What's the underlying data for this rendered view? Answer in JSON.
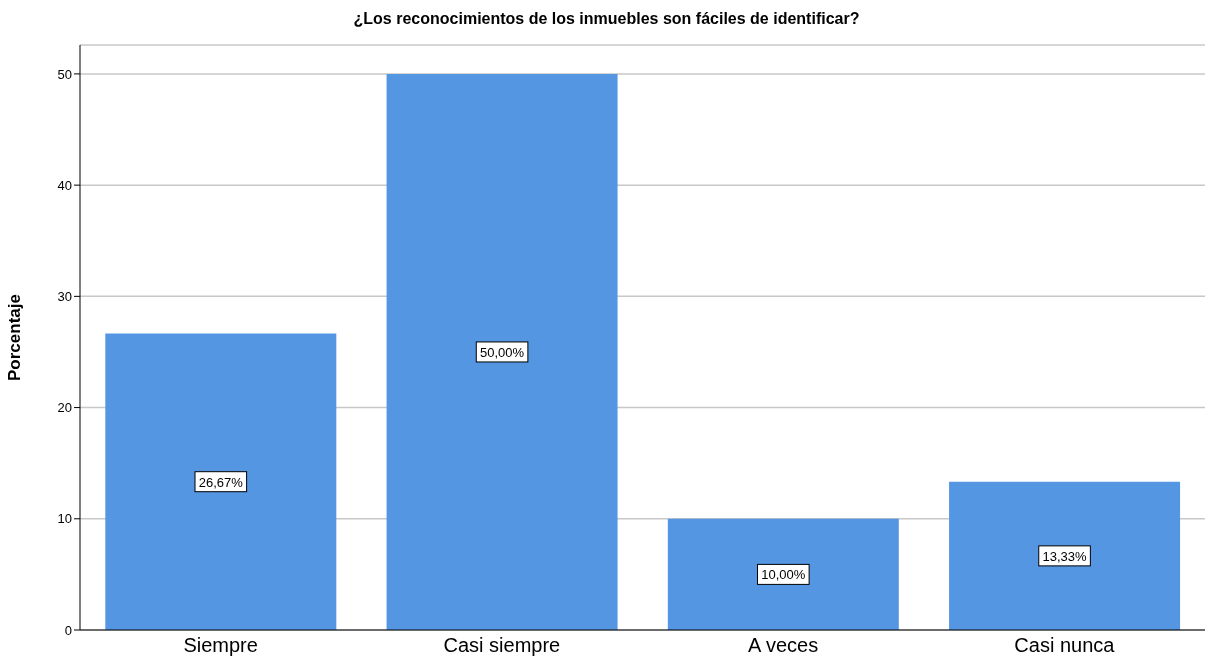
{
  "chart_data": {
    "type": "bar",
    "title": "¿Los reconocimientos de los inmuebles son fáciles de identificar?",
    "ylabel": "Porcentaje",
    "categories": [
      "Siempre",
      "Casi siempre",
      "A veces",
      "Casi nunca"
    ],
    "values": [
      26.67,
      50.0,
      10.0,
      13.33
    ],
    "value_labels": [
      "26,67%",
      "50,00%",
      "10,00%",
      "13,33%"
    ],
    "color": "#5596e2",
    "ylim": [
      0,
      52.6
    ],
    "yticks": [
      0,
      10,
      20,
      30,
      40,
      50
    ],
    "grid": "y"
  }
}
